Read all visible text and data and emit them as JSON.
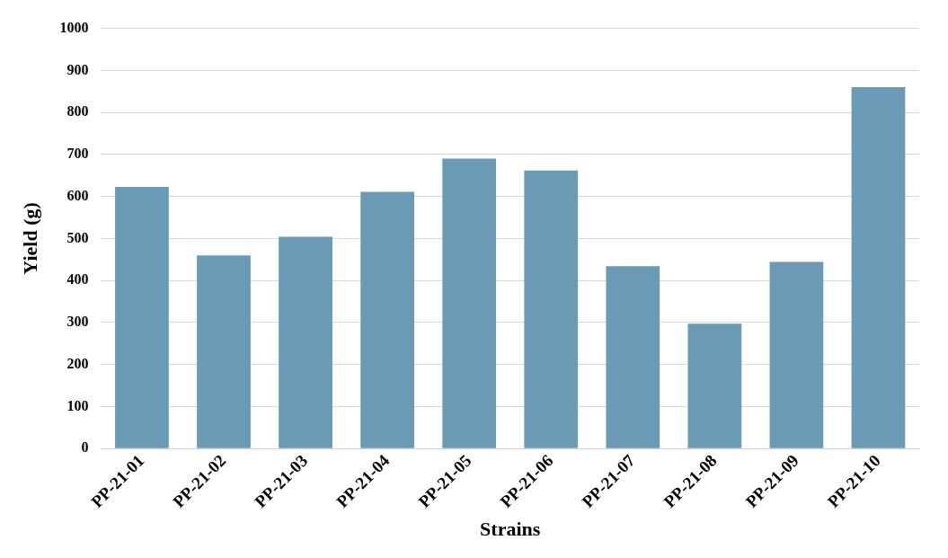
{
  "chart_data": {
    "type": "bar",
    "xlabel": "Strains",
    "ylabel": "Yield (g)",
    "categories": [
      "PP-21-01",
      "PP-21-02",
      "PP-21-03",
      "PP-21-04",
      "PP-21-05",
      "PP-21-06",
      "PP-21-07",
      "PP-21-08",
      "PP-21-09",
      "PP-21-10"
    ],
    "values": [
      623,
      460,
      504,
      611,
      690,
      662,
      434,
      297,
      444,
      860
    ],
    "color": "#6a9ab5",
    "ylim": [
      0,
      1000
    ],
    "yticks": [
      0,
      100,
      200,
      300,
      400,
      500,
      600,
      700,
      800,
      900,
      1000
    ],
    "grid": "y",
    "legend": false
  }
}
